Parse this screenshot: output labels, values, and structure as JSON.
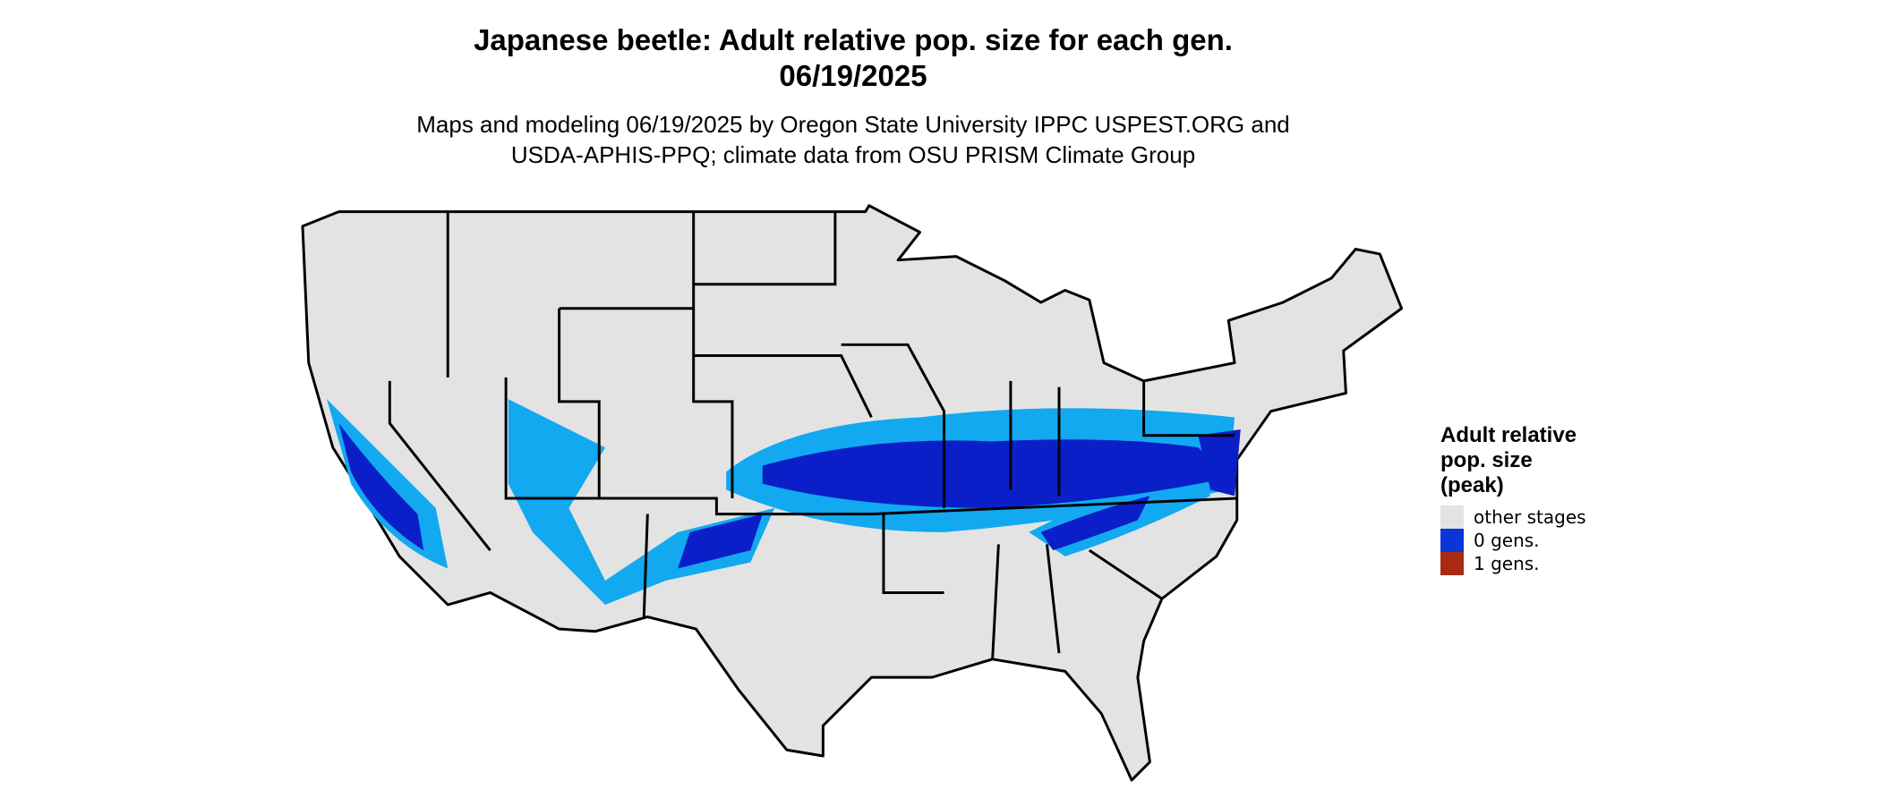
{
  "title": [
    "Japanese beetle: Adult relative pop. size for each gen.",
    "06/19/2025"
  ],
  "subtitle": [
    "Maps and modeling 06/19/2025 by Oregon State University IPPC USPEST.ORG and",
    "USDA-APHIS-PPQ; climate data from OSU PRISM Climate Group"
  ],
  "legend": {
    "title": [
      "Adult relative",
      "pop. size",
      "(peak)"
    ],
    "items": [
      {
        "label": "other stages",
        "color": "#e3e3e3"
      },
      {
        "label": "0 gens.",
        "color": "#0a36d8"
      },
      {
        "label": "1 gens.",
        "color": "#a82a15"
      }
    ]
  }
}
